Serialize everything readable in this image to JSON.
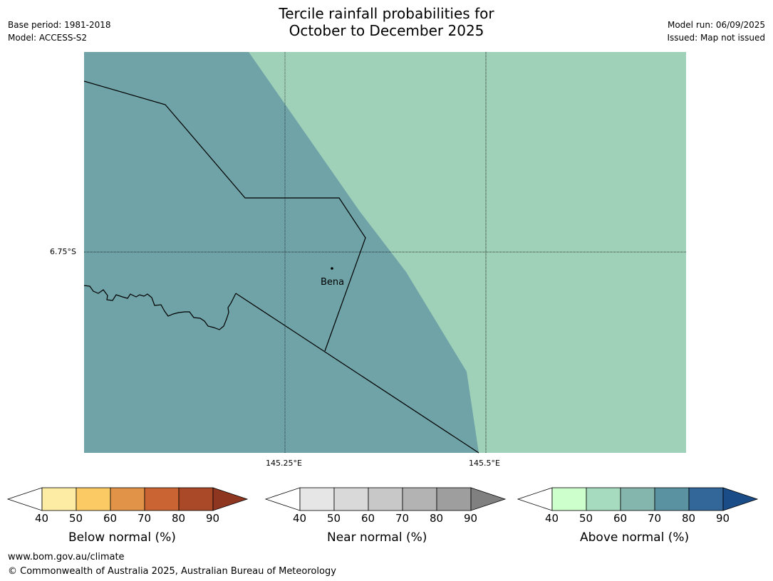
{
  "header": {
    "base_period": "Base period: 1981-2018",
    "model": "Model: ACCESS-S2",
    "title_line1": "Tercile rainfall probabilities for",
    "title_line2": "October to December 2025",
    "model_run": "Model run: 06/09/2025",
    "issued": "Issued: Map not issued"
  },
  "map": {
    "lat_label": "6.75°S",
    "lon_labels": [
      "145.25°E",
      "145.5°E"
    ],
    "place_name": "Bena",
    "colors": {
      "above_60_70": "#6fa3a7",
      "above_50_60": "#9fd1b9",
      "boundary": "#000000"
    }
  },
  "legends": [
    {
      "label": "Below normal (%)",
      "ticks": [
        "40",
        "50",
        "60",
        "70",
        "80",
        "90"
      ],
      "colors": [
        "#ffffff",
        "#fdeca4",
        "#fcca65",
        "#e19348",
        "#cb6433",
        "#aa4928",
        "#8f3621"
      ]
    },
    {
      "label": "Near normal (%)",
      "ticks": [
        "40",
        "50",
        "60",
        "70",
        "80",
        "90"
      ],
      "colors": [
        "#ffffff",
        "#e6e6e6",
        "#d9d9d9",
        "#c8c8c8",
        "#b3b3b3",
        "#9e9e9e",
        "#808080"
      ]
    },
    {
      "label": "Above normal (%)",
      "ticks": [
        "40",
        "50",
        "60",
        "70",
        "80",
        "90"
      ],
      "colors": [
        "#ffffff",
        "#ccffcc",
        "#a6dbc0",
        "#85b6ad",
        "#5b92a1",
        "#336699",
        "#1a4d88"
      ]
    }
  ],
  "footer": {
    "url": "www.bom.gov.au/climate",
    "copyright": "© Commonwealth of Australia 2025, Australian Bureau of Meteorology"
  }
}
